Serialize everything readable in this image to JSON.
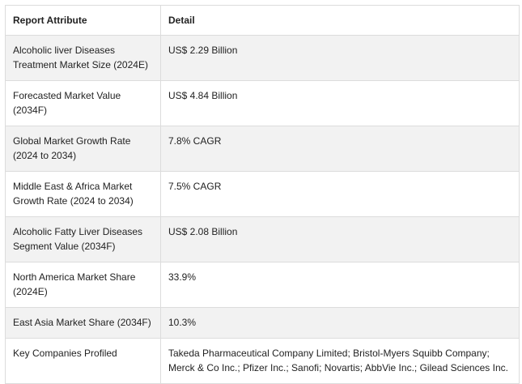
{
  "table": {
    "headers": [
      "Report Attribute",
      "Detail"
    ],
    "rows": [
      {
        "attribute": "Alcoholic liver Diseases Treatment Market Size (2024E)",
        "detail": "US$ 2.29 Billion"
      },
      {
        "attribute": "Forecasted Market Value (2034F)",
        "detail": "US$ 4.84 Billion"
      },
      {
        "attribute": "Global Market Growth Rate (2024 to 2034)",
        "detail": "7.8% CAGR"
      },
      {
        "attribute": "Middle East & Africa Market Growth Rate (2024 to 2034)",
        "detail": "7.5% CAGR"
      },
      {
        "attribute": "Alcoholic Fatty Liver Diseases Segment Value (2034F)",
        "detail": "US$ 2.08 Billion"
      },
      {
        "attribute": "North America Market Share (2024E)",
        "detail": "33.9%"
      },
      {
        "attribute": "East Asia Market Share (2034F)",
        "detail": "10.3%"
      },
      {
        "attribute": "Key Companies Profiled",
        "detail": "Takeda Pharmaceutical Company Limited; Bristol-Myers Squibb Company; Merck & Co Inc.; Pfizer Inc.; Sanofi; Novartis; AbbVie Inc.; Gilead Sciences Inc."
      }
    ]
  }
}
